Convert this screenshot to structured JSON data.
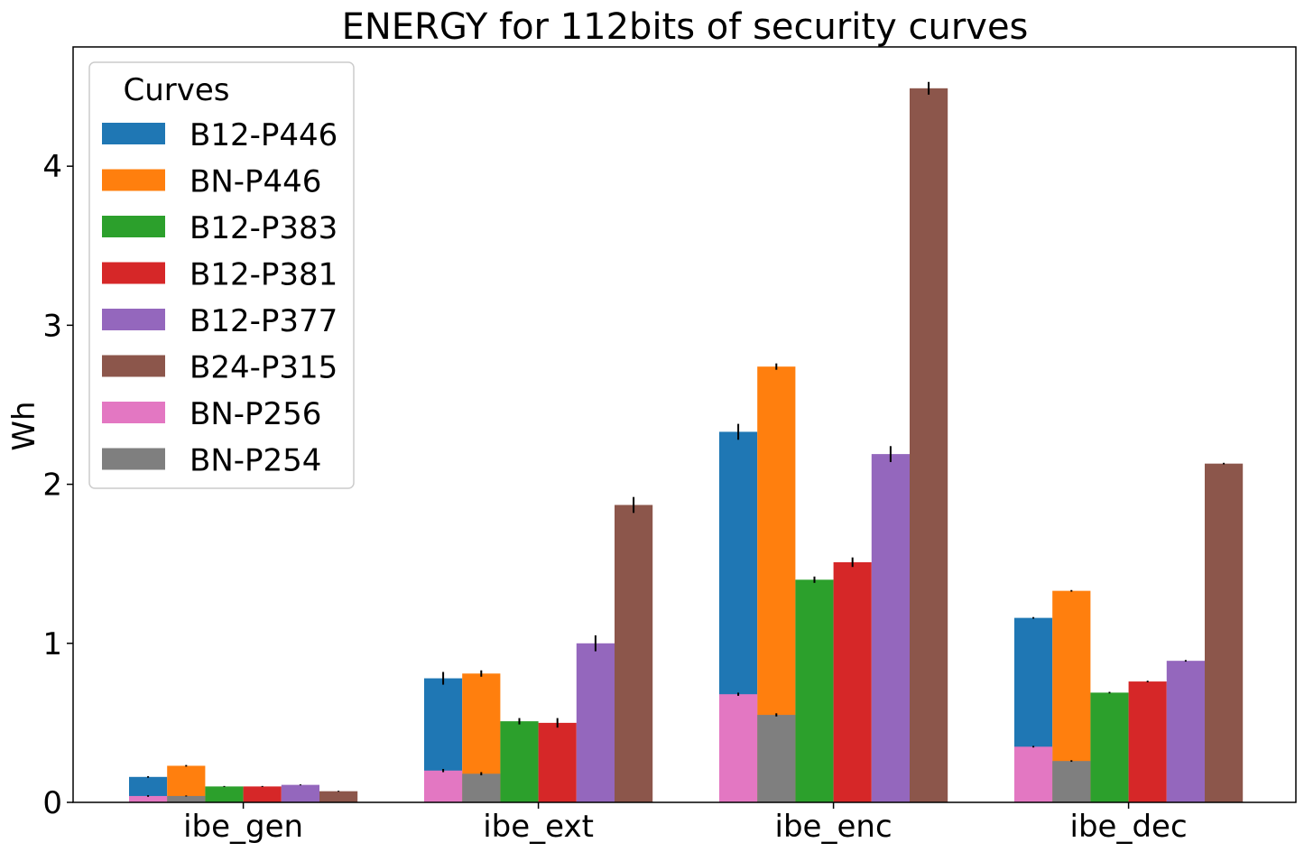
{
  "chart_data": {
    "type": "bar",
    "title": "ENERGY for 112bits of security curves",
    "xlabel": "",
    "ylabel": "Wh",
    "ylim": [
      0,
      4.75
    ],
    "yticks": [
      0,
      1,
      2,
      3,
      4
    ],
    "grid": false,
    "legend": {
      "title": "Curves",
      "placement": "top-left"
    },
    "categories": [
      "ibe_gen",
      "ibe_ext",
      "ibe_enc",
      "ibe_dec"
    ],
    "series": [
      {
        "name": "B12-P446",
        "color": "#1f77b4",
        "values": [
          0.16,
          0.78,
          2.33,
          1.16
        ],
        "errors": [
          0.005,
          0.04,
          0.05,
          0.005
        ]
      },
      {
        "name": "BN-P446",
        "color": "#ff7f0e",
        "values": [
          0.23,
          0.81,
          2.74,
          1.33
        ],
        "errors": [
          0.005,
          0.02,
          0.02,
          0.005
        ]
      },
      {
        "name": "B12-P383",
        "color": "#2ca02c",
        "values": [
          0.1,
          0.51,
          1.4,
          0.69
        ],
        "errors": [
          0.003,
          0.02,
          0.02,
          0.005
        ]
      },
      {
        "name": "B12-P381",
        "color": "#d62728",
        "values": [
          0.1,
          0.5,
          1.51,
          0.76
        ],
        "errors": [
          0.003,
          0.03,
          0.03,
          0.005
        ]
      },
      {
        "name": "B12-P377",
        "color": "#9467bd",
        "values": [
          0.11,
          1.0,
          2.19,
          0.89
        ],
        "errors": [
          0.003,
          0.05,
          0.05,
          0.005
        ]
      },
      {
        "name": "B24-P315",
        "color": "#8c564b",
        "values": [
          0.07,
          1.87,
          4.49,
          2.13
        ],
        "errors": [
          0.003,
          0.05,
          0.04,
          0.005
        ]
      }
    ],
    "overlay_series": [
      {
        "name": "BN-P256",
        "color": "#e377c2",
        "overlays": "B12-P446",
        "values": [
          0.04,
          0.2,
          0.68,
          0.35
        ],
        "errors": [
          0.005,
          0.01,
          0.01,
          0.005
        ]
      },
      {
        "name": "BN-P254",
        "color": "#7f7f7f",
        "overlays": "BN-P446",
        "values": [
          0.04,
          0.18,
          0.55,
          0.26
        ],
        "errors": [
          0.003,
          0.01,
          0.01,
          0.005
        ]
      }
    ]
  }
}
